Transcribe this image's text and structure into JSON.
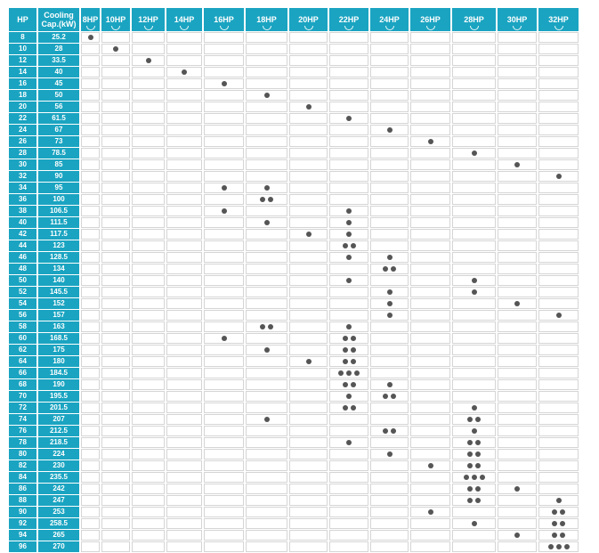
{
  "header": {
    "hp_label": "HP",
    "cooling_label_line1": "Cooling",
    "cooling_label_line2": "Cap.(kW)",
    "units": [
      "8HP",
      "10HP",
      "12HP",
      "14HP",
      "16HP",
      "18HP",
      "20HP",
      "22HP",
      "24HP",
      "26HP",
      "28HP",
      "30HP",
      "32HP"
    ]
  },
  "rows": [
    {
      "hp": "8",
      "cap": "25.2",
      "counts": [
        1,
        0,
        0,
        0,
        0,
        0,
        0,
        0,
        0,
        0,
        0,
        0,
        0
      ]
    },
    {
      "hp": "10",
      "cap": "28",
      "counts": [
        0,
        1,
        0,
        0,
        0,
        0,
        0,
        0,
        0,
        0,
        0,
        0,
        0
      ]
    },
    {
      "hp": "12",
      "cap": "33.5",
      "counts": [
        0,
        0,
        1,
        0,
        0,
        0,
        0,
        0,
        0,
        0,
        0,
        0,
        0
      ]
    },
    {
      "hp": "14",
      "cap": "40",
      "counts": [
        0,
        0,
        0,
        1,
        0,
        0,
        0,
        0,
        0,
        0,
        0,
        0,
        0
      ]
    },
    {
      "hp": "16",
      "cap": "45",
      "counts": [
        0,
        0,
        0,
        0,
        1,
        0,
        0,
        0,
        0,
        0,
        0,
        0,
        0
      ]
    },
    {
      "hp": "18",
      "cap": "50",
      "counts": [
        0,
        0,
        0,
        0,
        0,
        1,
        0,
        0,
        0,
        0,
        0,
        0,
        0
      ]
    },
    {
      "hp": "20",
      "cap": "56",
      "counts": [
        0,
        0,
        0,
        0,
        0,
        0,
        1,
        0,
        0,
        0,
        0,
        0,
        0
      ]
    },
    {
      "hp": "22",
      "cap": "61.5",
      "counts": [
        0,
        0,
        0,
        0,
        0,
        0,
        0,
        1,
        0,
        0,
        0,
        0,
        0
      ]
    },
    {
      "hp": "24",
      "cap": "67",
      "counts": [
        0,
        0,
        0,
        0,
        0,
        0,
        0,
        0,
        1,
        0,
        0,
        0,
        0
      ]
    },
    {
      "hp": "26",
      "cap": "73",
      "counts": [
        0,
        0,
        0,
        0,
        0,
        0,
        0,
        0,
        0,
        1,
        0,
        0,
        0
      ]
    },
    {
      "hp": "28",
      "cap": "78.5",
      "counts": [
        0,
        0,
        0,
        0,
        0,
        0,
        0,
        0,
        0,
        0,
        1,
        0,
        0
      ]
    },
    {
      "hp": "30",
      "cap": "85",
      "counts": [
        0,
        0,
        0,
        0,
        0,
        0,
        0,
        0,
        0,
        0,
        0,
        1,
        0
      ]
    },
    {
      "hp": "32",
      "cap": "90",
      "counts": [
        0,
        0,
        0,
        0,
        0,
        0,
        0,
        0,
        0,
        0,
        0,
        0,
        1
      ]
    },
    {
      "hp": "34",
      "cap": "95",
      "counts": [
        0,
        0,
        0,
        0,
        1,
        1,
        0,
        0,
        0,
        0,
        0,
        0,
        0
      ]
    },
    {
      "hp": "36",
      "cap": "100",
      "counts": [
        0,
        0,
        0,
        0,
        0,
        2,
        0,
        0,
        0,
        0,
        0,
        0,
        0
      ]
    },
    {
      "hp": "38",
      "cap": "106.5",
      "counts": [
        0,
        0,
        0,
        0,
        1,
        0,
        0,
        1,
        0,
        0,
        0,
        0,
        0
      ]
    },
    {
      "hp": "40",
      "cap": "111.5",
      "counts": [
        0,
        0,
        0,
        0,
        0,
        1,
        0,
        1,
        0,
        0,
        0,
        0,
        0
      ]
    },
    {
      "hp": "42",
      "cap": "117.5",
      "counts": [
        0,
        0,
        0,
        0,
        0,
        0,
        1,
        1,
        0,
        0,
        0,
        0,
        0
      ]
    },
    {
      "hp": "44",
      "cap": "123",
      "counts": [
        0,
        0,
        0,
        0,
        0,
        0,
        0,
        2,
        0,
        0,
        0,
        0,
        0
      ]
    },
    {
      "hp": "46",
      "cap": "128.5",
      "counts": [
        0,
        0,
        0,
        0,
        0,
        0,
        0,
        1,
        1,
        0,
        0,
        0,
        0
      ]
    },
    {
      "hp": "48",
      "cap": "134",
      "counts": [
        0,
        0,
        0,
        0,
        0,
        0,
        0,
        0,
        2,
        0,
        0,
        0,
        0
      ]
    },
    {
      "hp": "50",
      "cap": "140",
      "counts": [
        0,
        0,
        0,
        0,
        0,
        0,
        0,
        1,
        0,
        0,
        1,
        0,
        0
      ]
    },
    {
      "hp": "52",
      "cap": "145.5",
      "counts": [
        0,
        0,
        0,
        0,
        0,
        0,
        0,
        0,
        1,
        0,
        1,
        0,
        0
      ]
    },
    {
      "hp": "54",
      "cap": "152",
      "counts": [
        0,
        0,
        0,
        0,
        0,
        0,
        0,
        0,
        1,
        0,
        0,
        1,
        0
      ]
    },
    {
      "hp": "56",
      "cap": "157",
      "counts": [
        0,
        0,
        0,
        0,
        0,
        0,
        0,
        0,
        1,
        0,
        0,
        0,
        1
      ]
    },
    {
      "hp": "58",
      "cap": "163",
      "counts": [
        0,
        0,
        0,
        0,
        0,
        2,
        0,
        1,
        0,
        0,
        0,
        0,
        0
      ]
    },
    {
      "hp": "60",
      "cap": "168.5",
      "counts": [
        0,
        0,
        0,
        0,
        1,
        0,
        0,
        2,
        0,
        0,
        0,
        0,
        0
      ]
    },
    {
      "hp": "62",
      "cap": "175",
      "counts": [
        0,
        0,
        0,
        0,
        0,
        1,
        0,
        2,
        0,
        0,
        0,
        0,
        0
      ]
    },
    {
      "hp": "64",
      "cap": "180",
      "counts": [
        0,
        0,
        0,
        0,
        0,
        0,
        1,
        2,
        0,
        0,
        0,
        0,
        0
      ]
    },
    {
      "hp": "66",
      "cap": "184.5",
      "counts": [
        0,
        0,
        0,
        0,
        0,
        0,
        0,
        3,
        0,
        0,
        0,
        0,
        0
      ]
    },
    {
      "hp": "68",
      "cap": "190",
      "counts": [
        0,
        0,
        0,
        0,
        0,
        0,
        0,
        2,
        1,
        0,
        0,
        0,
        0
      ]
    },
    {
      "hp": "70",
      "cap": "195.5",
      "counts": [
        0,
        0,
        0,
        0,
        0,
        0,
        0,
        1,
        2,
        0,
        0,
        0,
        0
      ]
    },
    {
      "hp": "72",
      "cap": "201.5",
      "counts": [
        0,
        0,
        0,
        0,
        0,
        0,
        0,
        2,
        0,
        0,
        1,
        0,
        0
      ]
    },
    {
      "hp": "74",
      "cap": "207",
      "counts": [
        0,
        0,
        0,
        0,
        0,
        1,
        0,
        0,
        0,
        0,
        2,
        0,
        0
      ]
    },
    {
      "hp": "76",
      "cap": "212.5",
      "counts": [
        0,
        0,
        0,
        0,
        0,
        0,
        0,
        0,
        2,
        0,
        1,
        0,
        0
      ]
    },
    {
      "hp": "78",
      "cap": "218.5",
      "counts": [
        0,
        0,
        0,
        0,
        0,
        0,
        0,
        1,
        0,
        0,
        2,
        0,
        0
      ]
    },
    {
      "hp": "80",
      "cap": "224",
      "counts": [
        0,
        0,
        0,
        0,
        0,
        0,
        0,
        0,
        1,
        0,
        2,
        0,
        0
      ]
    },
    {
      "hp": "82",
      "cap": "230",
      "counts": [
        0,
        0,
        0,
        0,
        0,
        0,
        0,
        0,
        0,
        1,
        2,
        0,
        0
      ]
    },
    {
      "hp": "84",
      "cap": "235.5",
      "counts": [
        0,
        0,
        0,
        0,
        0,
        0,
        0,
        0,
        0,
        0,
        3,
        0,
        0
      ]
    },
    {
      "hp": "86",
      "cap": "242",
      "counts": [
        0,
        0,
        0,
        0,
        0,
        0,
        0,
        0,
        0,
        0,
        2,
        1,
        0
      ]
    },
    {
      "hp": "88",
      "cap": "247",
      "counts": [
        0,
        0,
        0,
        0,
        0,
        0,
        0,
        0,
        0,
        0,
        2,
        0,
        1
      ]
    },
    {
      "hp": "90",
      "cap": "253",
      "counts": [
        0,
        0,
        0,
        0,
        0,
        0,
        0,
        0,
        0,
        1,
        0,
        0,
        2
      ]
    },
    {
      "hp": "92",
      "cap": "258.5",
      "counts": [
        0,
        0,
        0,
        0,
        0,
        0,
        0,
        0,
        0,
        0,
        1,
        0,
        2
      ]
    },
    {
      "hp": "94",
      "cap": "265",
      "counts": [
        0,
        0,
        0,
        0,
        0,
        0,
        0,
        0,
        0,
        0,
        0,
        1,
        2
      ]
    },
    {
      "hp": "96",
      "cap": "270",
      "counts": [
        0,
        0,
        0,
        0,
        0,
        0,
        0,
        0,
        0,
        0,
        0,
        0,
        3
      ]
    }
  ],
  "colors": {
    "header": "#1aa4c1",
    "dot": "#555555",
    "grid": "#d5d5d5"
  },
  "icons": {
    "combination_marker": "dot-icon",
    "header_decoration": "chevron-down-icon"
  }
}
